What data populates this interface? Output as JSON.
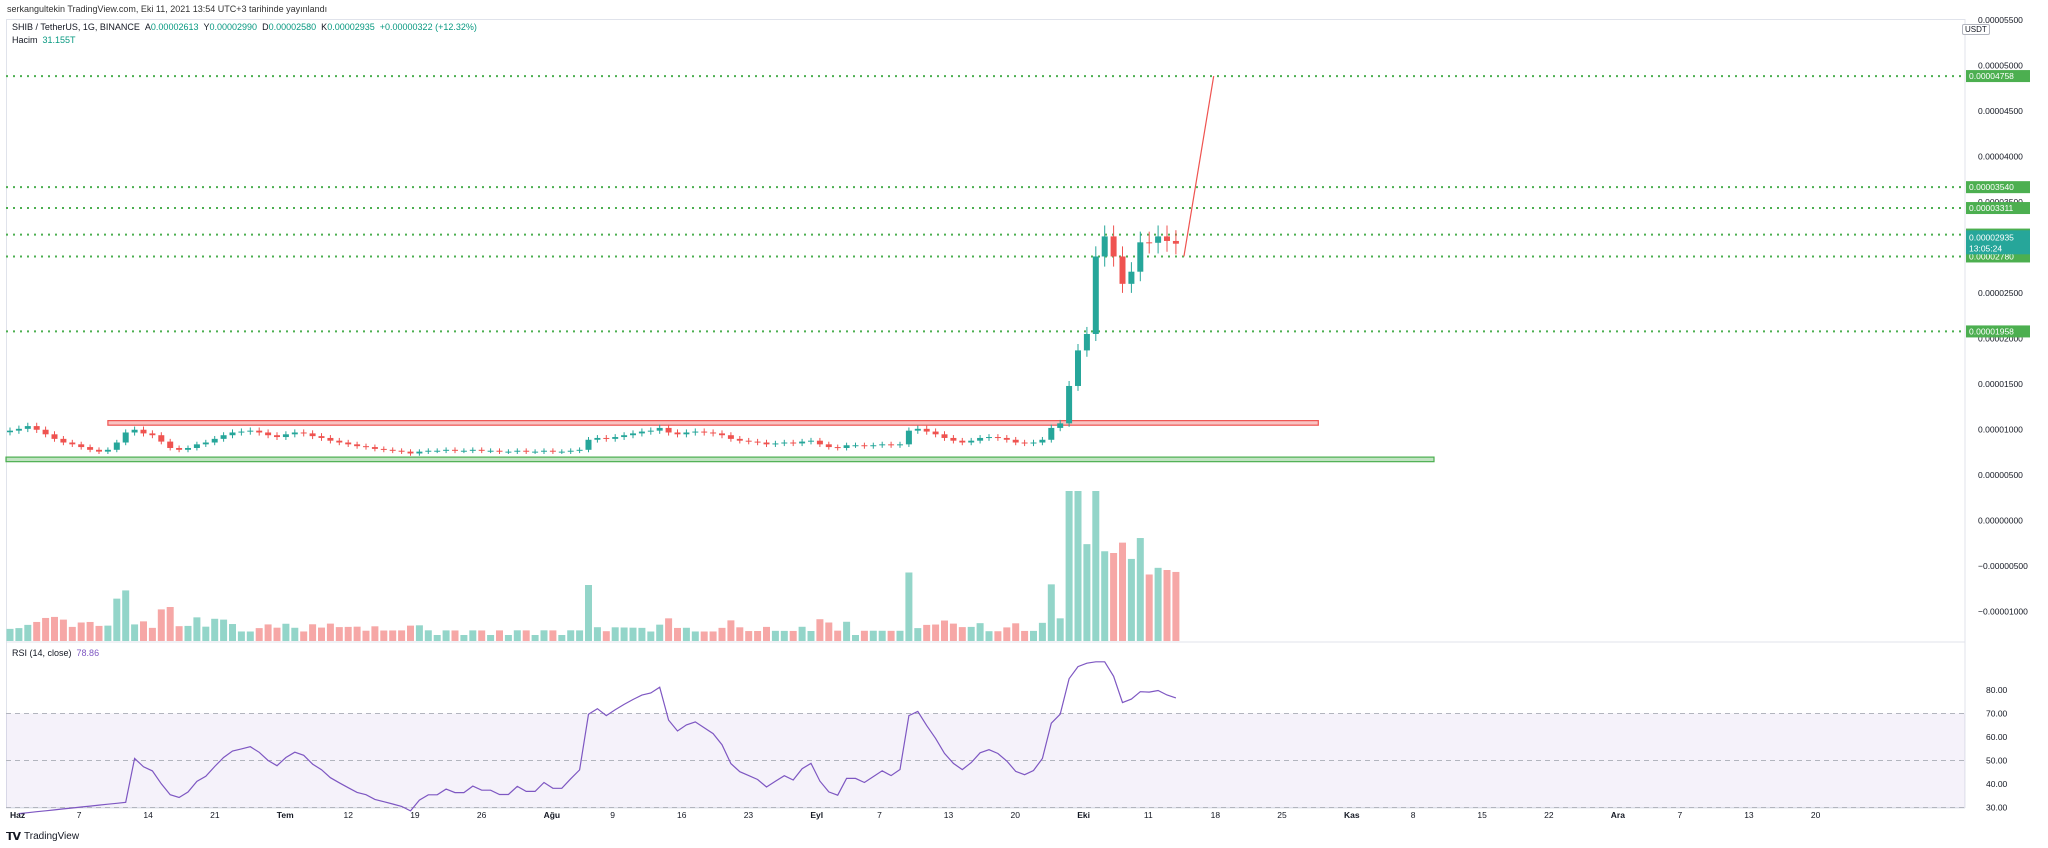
{
  "published": "serkangultekin TradingView.com, Eki 11, 2021 13:54 UTC+3 tarihinde yayınlandı",
  "legend": {
    "symbol": "SHIB / TetherUS, 1G, BINANCE",
    "o_label": "A",
    "o": "0.00002613",
    "h_label": "Y",
    "h": "0.00002990",
    "l_label": "D",
    "l": "0.00002580",
    "c_label": "K",
    "c": "0.00002935",
    "chg": "+0.00000322 (+12.32%)",
    "volume_label": "Hacim",
    "volume": "31.155T",
    "rsi_label": "RSI (14, close)",
    "rsi": "78.86"
  },
  "currency": "USDT",
  "logo_text": "TradingView",
  "colors": {
    "up": "#26a69a",
    "down": "#ef5350",
    "up_vol": "#93d5c9",
    "down_vol": "#f6a7a6",
    "level": "#4caf50",
    "rsi": "#7e57c2",
    "red_box": "#ef5350",
    "green_box": "#4caf50"
  },
  "chart_data": [
    {
      "type": "candlestick",
      "price_axis_ticks": [
        "0.00005500",
        "0.00005000",
        "0.00004500",
        "0.00004000",
        "0.00003500",
        "0.00003000",
        "0.00002500",
        "0.00002000",
        "0.00001500",
        "0.00001000",
        "0.00000500",
        "0.00000000",
        "−0.00000500",
        "−0.00001000"
      ],
      "x_tick_labels": [
        "Haz",
        "7",
        "14",
        "21",
        "Tem",
        "12",
        "19",
        "26",
        "Ağu",
        "9",
        "16",
        "23",
        "Eyl",
        "7",
        "13",
        "20",
        "Eki",
        "11",
        "18",
        "25",
        "Kas",
        "8",
        "15",
        "22",
        "Ara",
        "7",
        "13",
        "20"
      ],
      "horizontal_levels": [
        {
          "label": "0.00004758",
          "value": 4.758e-05
        },
        {
          "label": "0.00003540",
          "value": 3.54e-05
        },
        {
          "label": "0.00003311",
          "value": 3.311e-05
        },
        {
          "label": "0.00003020",
          "value": 3.02e-05
        },
        {
          "label": "0.00002780",
          "value": 2.78e-05
        },
        {
          "label": "0.00001958",
          "value": 1.958e-05
        }
      ],
      "current_price_label": "0.00002935",
      "countdown": "13:05:24",
      "resistance_zone": {
        "from": 9.3e-06,
        "to": 9.8e-06,
        "start_index": 11,
        "end_index": 147
      },
      "support_zone": {
        "from": 5.3e-06,
        "to": 5.8e-06,
        "start_index": 0,
        "end_index": 160
      },
      "projection": {
        "from_index": 131,
        "from_value": 2.78e-05,
        "to_index": 133,
        "to_value": 4.758e-05
      },
      "closes": [
        8.7e-06,
        8.9e-06,
        9.2e-06,
        8.8e-06,
        8.3e-06,
        7.8e-06,
        7.4e-06,
        7.2e-06,
        6.9e-06,
        6.6e-06,
        6.4e-06,
        6.6e-06,
        7.4e-06,
        8.5e-06,
        8.8e-06,
        8.4e-06,
        8.2e-06,
        7.5e-06,
        6.8e-06,
        6.6e-06,
        6.8e-06,
        7.2e-06,
        7.4e-06,
        7.8e-06,
        8.2e-06,
        8.5e-06,
        8.6e-06,
        8.7e-06,
        8.5e-06,
        8.2e-06,
        8e-06,
        8.3e-06,
        8.5e-06,
        8.4e-06,
        8.1e-06,
        7.9e-06,
        7.6e-06,
        7.4e-06,
        7.2e-06,
        7e-06,
        6.9e-06,
        6.7e-06,
        6.6e-06,
        6.5e-06,
        6.4e-06,
        6.2e-06,
        6.4e-06,
        6.5e-06,
        6.5e-06,
        6.6e-06,
        6.5e-06,
        6.5e-06,
        6.6e-06,
        6.5e-06,
        6.5e-06,
        6.4e-06,
        6.4e-06,
        6.5e-06,
        6.4e-06,
        6.4e-06,
        6.5e-06,
        6.4e-06,
        6.4e-06,
        6.5e-06,
        6.6e-06,
        7.7e-06,
        7.9e-06,
        7.8e-06,
        8e-06,
        8.2e-06,
        8.4e-06,
        8.6e-06,
        8.7e-06,
        9e-06,
        8.5e-06,
        8.3e-06,
        8.5e-06,
        8.6e-06,
        8.5e-06,
        8.4e-06,
        8.2e-06,
        7.8e-06,
        7.6e-06,
        7.5e-06,
        7.4e-06,
        7.2e-06,
        7.3e-06,
        7.4e-06,
        7.3e-06,
        7.5e-06,
        7.6e-06,
        7.2e-06,
        6.9e-06,
        6.8e-06,
        7.1e-06,
        7.1e-06,
        7e-06,
        7.1e-06,
        7.2e-06,
        7.1e-06,
        7.2e-06,
        8.7e-06,
        8.9e-06,
        8.6e-06,
        8.3e-06,
        7.9e-06,
        7.6e-06,
        7.4e-06,
        7.6e-06,
        7.9e-06,
        8e-06,
        7.9e-06,
        7.7e-06,
        7.4e-06,
        7.3e-06,
        7.4e-06,
        7.7e-06,
        9e-06,
        9.5e-06,
        1.36e-05,
        1.75e-05,
        1.93e-05,
        2.78e-05,
        3e-05,
        2.78e-05,
        2.48e-05,
        2.613e-05,
        2.935e-05,
        2.93e-05,
        3e-05,
        2.95e-05,
        2.92e-05
      ],
      "rsi_axis_ticks": [
        "80.00",
        "70.00",
        "60.00",
        "50.00",
        "40.00",
        "30.00"
      ]
    }
  ]
}
